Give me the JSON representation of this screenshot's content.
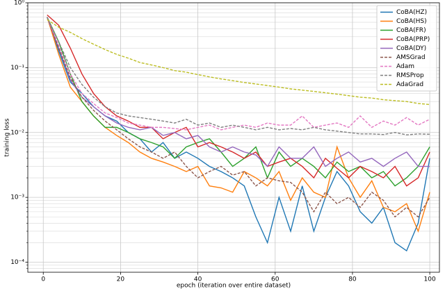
{
  "chart_data": {
    "type": "line",
    "xlabel": "epoch (iteration over entire dataset)",
    "ylabel": "training loss",
    "x": [
      1,
      4,
      7,
      10,
      13,
      16,
      19,
      22,
      25,
      28,
      31,
      34,
      37,
      40,
      43,
      46,
      49,
      52,
      55,
      58,
      61,
      64,
      67,
      70,
      73,
      76,
      79,
      82,
      85,
      88,
      91,
      94,
      97,
      100
    ],
    "xlim": [
      -4,
      102.5
    ],
    "xticks": [
      0,
      20,
      40,
      60,
      80,
      100
    ],
    "ylim": [
      7e-05,
      1
    ],
    "yscale": "log",
    "yticks": [
      {
        "value": 0.0001,
        "label": "10⁻⁴"
      },
      {
        "value": 0.001,
        "label": "10⁻³"
      },
      {
        "value": 0.01,
        "label": "10⁻²"
      },
      {
        "value": 0.1,
        "label": "10⁻¹"
      },
      {
        "value": 1,
        "label": "10⁰"
      }
    ],
    "yticks_minor": [
      8e-05,
      9e-05,
      0.0002,
      0.0003,
      0.0004,
      0.0005,
      0.0006,
      0.0007,
      0.0008,
      0.0009,
      0.002,
      0.003,
      0.004,
      0.005,
      0.006,
      0.007,
      0.008,
      0.009,
      0.02,
      0.03,
      0.04,
      0.05,
      0.06,
      0.07,
      0.08,
      0.09,
      0.2,
      0.3,
      0.4,
      0.5,
      0.6,
      0.7,
      0.8,
      0.9
    ],
    "grid": true,
    "legend": "upper right",
    "series": [
      {
        "name": "CoBA(HZ)",
        "color": "#1f77b4",
        "linestyle": "solid",
        "values": [
          0.6,
          0.18,
          0.06,
          0.04,
          0.025,
          0.018,
          0.015,
          0.01,
          0.008,
          0.005,
          0.007,
          0.004,
          0.005,
          0.004,
          0.003,
          0.0025,
          0.002,
          0.0015,
          0.0005,
          0.0002,
          0.001,
          0.0003,
          0.0015,
          0.0003,
          0.001,
          0.0025,
          0.0015,
          0.0006,
          0.0004,
          0.0007,
          0.0002,
          0.00015,
          0.0004,
          0.004
        ]
      },
      {
        "name": "CoBA(HS)",
        "color": "#ff7f0e",
        "linestyle": "solid",
        "values": [
          0.6,
          0.16,
          0.05,
          0.03,
          0.018,
          0.012,
          0.009,
          0.007,
          0.005,
          0.004,
          0.0035,
          0.003,
          0.0025,
          0.003,
          0.0015,
          0.0014,
          0.0012,
          0.0025,
          0.002,
          0.0015,
          0.0025,
          0.0009,
          0.002,
          0.0012,
          0.001,
          0.006,
          0.002,
          0.001,
          0.0018,
          0.0007,
          0.0006,
          0.0008,
          0.0003,
          0.0012
        ]
      },
      {
        "name": "CoBA(FR)",
        "color": "#2ca02c",
        "linestyle": "solid",
        "values": [
          0.6,
          0.25,
          0.08,
          0.03,
          0.018,
          0.012,
          0.012,
          0.01,
          0.008,
          0.007,
          0.006,
          0.004,
          0.006,
          0.007,
          0.008,
          0.005,
          0.003,
          0.004,
          0.006,
          0.002,
          0.005,
          0.003,
          0.004,
          0.003,
          0.002,
          0.0035,
          0.0025,
          0.003,
          0.002,
          0.0025,
          0.0015,
          0.002,
          0.003,
          0.006
        ]
      },
      {
        "name": "CoBA(PRP)",
        "color": "#d62728",
        "linestyle": "solid",
        "values": [
          0.65,
          0.45,
          0.2,
          0.08,
          0.04,
          0.025,
          0.018,
          0.015,
          0.012,
          0.012,
          0.008,
          0.01,
          0.012,
          0.006,
          0.007,
          0.006,
          0.005,
          0.004,
          0.005,
          0.003,
          0.0035,
          0.004,
          0.003,
          0.002,
          0.004,
          0.0028,
          0.002,
          0.003,
          0.0025,
          0.002,
          0.003,
          0.0015,
          0.002,
          0.005
        ]
      },
      {
        "name": "CoBA(DY)",
        "color": "#9467bd",
        "linestyle": "solid",
        "values": [
          0.6,
          0.2,
          0.065,
          0.035,
          0.025,
          0.018,
          0.014,
          0.012,
          0.011,
          0.012,
          0.009,
          0.01,
          0.008,
          0.009,
          0.006,
          0.005,
          0.006,
          0.005,
          0.0045,
          0.003,
          0.006,
          0.004,
          0.004,
          0.006,
          0.003,
          0.004,
          0.005,
          0.0035,
          0.004,
          0.003,
          0.004,
          0.005,
          0.003,
          0.003
        ]
      },
      {
        "name": "AMSGrad",
        "color": "#8c564b",
        "linestyle": "dashed",
        "values": [
          0.6,
          0.2,
          0.07,
          0.035,
          0.022,
          0.015,
          0.011,
          0.008,
          0.006,
          0.005,
          0.004,
          0.005,
          0.003,
          0.002,
          0.0025,
          0.003,
          0.0022,
          0.0025,
          0.0015,
          0.002,
          0.0018,
          0.0017,
          0.0012,
          0.0006,
          0.0012,
          0.0008,
          0.001,
          0.0007,
          0.0012,
          0.0009,
          0.0005,
          0.0007,
          0.0005,
          0.001
        ]
      },
      {
        "name": "Adam",
        "color": "#e377c2",
        "linestyle": "dashed",
        "values": [
          0.6,
          0.22,
          0.08,
          0.04,
          0.028,
          0.02,
          0.017,
          0.014,
          0.013,
          0.012,
          0.012,
          0.0115,
          0.011,
          0.012,
          0.013,
          0.011,
          0.012,
          0.013,
          0.012,
          0.014,
          0.013,
          0.013,
          0.018,
          0.012,
          0.013,
          0.014,
          0.012,
          0.018,
          0.012,
          0.015,
          0.013,
          0.017,
          0.013,
          0.016
        ]
      },
      {
        "name": "RMSProp",
        "color": "#7f7f7f",
        "linestyle": "dashed",
        "values": [
          0.6,
          0.25,
          0.1,
          0.055,
          0.035,
          0.025,
          0.02,
          0.018,
          0.017,
          0.016,
          0.015,
          0.014,
          0.016,
          0.013,
          0.014,
          0.012,
          0.013,
          0.012,
          0.011,
          0.012,
          0.011,
          0.0115,
          0.011,
          0.012,
          0.011,
          0.0105,
          0.01,
          0.0095,
          0.0095,
          0.0093,
          0.01,
          0.0092,
          0.0095,
          0.0094
        ]
      },
      {
        "name": "AdaGrad",
        "color": "#bcbd22",
        "linestyle": "dashed",
        "values": [
          0.55,
          0.42,
          0.35,
          0.28,
          0.23,
          0.19,
          0.16,
          0.14,
          0.12,
          0.11,
          0.1,
          0.09,
          0.085,
          0.078,
          0.072,
          0.067,
          0.063,
          0.059,
          0.056,
          0.053,
          0.05,
          0.047,
          0.045,
          0.043,
          0.041,
          0.039,
          0.037,
          0.035,
          0.034,
          0.032,
          0.031,
          0.03,
          0.028,
          0.027
        ]
      }
    ]
  }
}
